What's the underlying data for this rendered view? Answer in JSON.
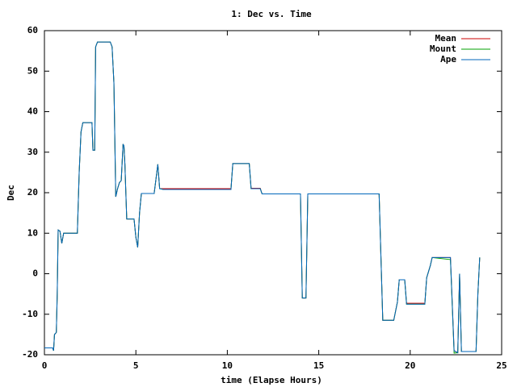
{
  "chart_data": {
    "type": "line",
    "title": "1: Dec vs. Time",
    "x_label": "time (Elapse Hours)",
    "y_label": "Dec",
    "xlim": [
      0,
      25
    ],
    "xticks": [
      0,
      5,
      10,
      15,
      20,
      25
    ],
    "ylim": [
      -20,
      60
    ],
    "yticks": [
      -20,
      -10,
      0,
      10,
      20,
      30,
      40,
      50,
      60
    ],
    "legend": "top-right",
    "x": [
      0,
      0.45,
      0.5,
      0.55,
      0.65,
      0.7,
      0.75,
      0.85,
      0.95,
      1.05,
      1.8,
      1.9,
      2.0,
      2.1,
      2.6,
      2.65,
      2.75,
      2.8,
      2.9,
      3.6,
      3.7,
      3.8,
      3.9,
      4.0,
      4.1,
      4.2,
      4.3,
      4.35,
      4.4,
      4.5,
      4.9,
      5.0,
      5.1,
      5.2,
      5.3,
      6.0,
      6.2,
      6.3,
      6.5,
      10.2,
      10.3,
      11.2,
      11.3,
      11.8,
      11.9,
      14.0,
      14.1,
      14.3,
      14.4,
      18.3,
      18.5,
      19.1,
      19.3,
      19.4,
      19.7,
      19.8,
      20.8,
      20.9,
      21.1,
      21.2,
      22.2,
      22.4,
      22.6,
      22.7,
      22.8,
      23.6,
      23.7,
      23.8
    ],
    "series": [
      {
        "name": "Mean",
        "color": "#cc0000",
        "values": [
          -18.3,
          -18.3,
          -19,
          -15,
          -14.5,
          -5,
          10.8,
          10.5,
          7.5,
          10,
          10,
          25,
          35,
          37.3,
          37.3,
          30.5,
          30.5,
          56,
          57.2,
          57.2,
          56,
          47,
          19,
          21,
          22.5,
          23,
          32,
          31.5,
          27,
          13.5,
          13.5,
          9,
          6.5,
          15,
          19.8,
          19.8,
          27,
          21,
          21,
          21,
          27.2,
          27.2,
          21.1,
          21.1,
          19.7,
          19.7,
          -6,
          -6,
          19.7,
          19.7,
          -11.5,
          -11.5,
          -7,
          -1.5,
          -1.5,
          -7.3,
          -7.3,
          -1,
          2,
          4,
          4,
          -19,
          -19.5,
          0,
          -19.2,
          -19.2,
          -5,
          4
        ]
      },
      {
        "name": "Mount",
        "color": "#00a000",
        "values": [
          -18.3,
          -18.3,
          -19,
          -15,
          -14.5,
          -5,
          10.8,
          10.5,
          7.5,
          10,
          10,
          25,
          35,
          37.3,
          37.3,
          30.5,
          30.5,
          56,
          57.2,
          57.2,
          56,
          47,
          19,
          21,
          22.5,
          23,
          32,
          31.5,
          27,
          13.5,
          13.5,
          9,
          6.5,
          15,
          19.8,
          19.8,
          27,
          21,
          20.8,
          20.8,
          27.2,
          27.2,
          21,
          21,
          19.7,
          19.7,
          -6,
          -6,
          19.7,
          19.7,
          -11.5,
          -11.5,
          -7,
          -1.5,
          -1.5,
          -7.5,
          -7.5,
          -1,
          2,
          4,
          3.5,
          -19.6,
          -19.5,
          0,
          -19.2,
          -19.2,
          -5,
          4
        ]
      },
      {
        "name": "Ape",
        "color": "#0066bb",
        "values": [
          -18.3,
          -18.3,
          -19,
          -15,
          -14.5,
          -5,
          10.8,
          10.5,
          7.5,
          10,
          10,
          25,
          35,
          37.3,
          37.3,
          30.5,
          30.5,
          56,
          57.2,
          57.2,
          56,
          47,
          19,
          21,
          22.5,
          23,
          32,
          31.5,
          27,
          13.5,
          13.5,
          9,
          6.5,
          15,
          19.8,
          19.8,
          27,
          21,
          20.8,
          20.8,
          27.2,
          27.2,
          21,
          21,
          19.7,
          19.7,
          -6,
          -6,
          19.7,
          19.7,
          -11.5,
          -11.5,
          -7,
          -1.5,
          -1.5,
          -7.5,
          -7.5,
          -1,
          2,
          4,
          4,
          -19,
          -19.5,
          0,
          -19.2,
          -19.2,
          -5,
          4
        ]
      }
    ]
  }
}
